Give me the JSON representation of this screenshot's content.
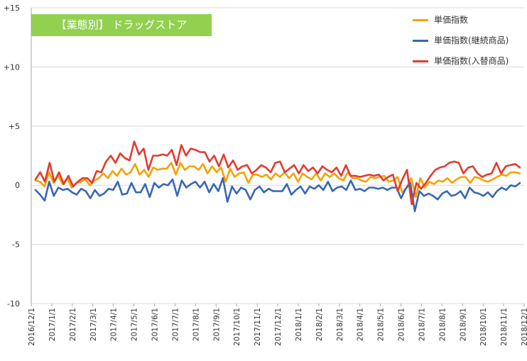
{
  "title": "【業態別】 ドラッグストア",
  "colors": {
    "background": "#ffffff",
    "title_box": "#92d050",
    "title_text": "#ffffff",
    "grid": "#d9d9d9",
    "axis": "#a6a6a6"
  },
  "chart_data": {
    "type": "line",
    "ylim": [
      -10,
      15
    ],
    "yticks": [
      -10,
      -5,
      0,
      5,
      10,
      15
    ],
    "ytick_labels": [
      "-10",
      "-5",
      "0",
      "+5",
      "+10",
      "+15"
    ],
    "xlim": [
      "2016-12-01",
      "2018-12-01"
    ],
    "xtick_labels": [
      "2016/12/1",
      "2017/1/1",
      "2017/2/1",
      "2017/3/1",
      "2017/4/1",
      "2017/5/1",
      "2017/6/1",
      "2017/7/1",
      "2017/8/1",
      "2017/9/1",
      "2017/10/1",
      "2017/11/1",
      "2017/12/1",
      "2018/1/1",
      "2018/2/1",
      "2018/3/1",
      "2018/4/1",
      "2018/5/1",
      "2018/6/1",
      "2018/7/1",
      "2018/8/1",
      "2018/9/1",
      "2018/10/1",
      "2018/11/1",
      "2018/12/1"
    ],
    "grid": "horizontal",
    "legend_position": "top-right",
    "series": [
      {
        "name": "単価指数",
        "color": "#f5a200",
        "values": [
          0.4,
          0.3,
          -0.1,
          1.1,
          0.2,
          0.8,
          0.1,
          0.6,
          -0.2,
          0.2,
          0.3,
          0.5,
          0.0,
          0.4,
          0.6,
          1.0,
          0.6,
          1.2,
          0.8,
          1.4,
          0.9,
          1.1,
          1.8,
          0.9,
          1.3,
          0.7,
          1.5,
          1.3,
          1.4,
          1.4,
          1.9,
          0.9,
          1.9,
          1.3,
          1.6,
          1.6,
          1.3,
          1.8,
          1.0,
          1.6,
          1.1,
          1.5,
          0.3,
          1.4,
          0.7,
          1.0,
          1.1,
          0.2,
          0.9,
          0.9,
          0.7,
          0.9,
          0.5,
          1.0,
          0.7,
          1.1,
          0.6,
          1.0,
          0.3,
          1.0,
          0.7,
          0.5,
          1.0,
          0.4,
          1.0,
          0.7,
          1.0,
          0.6,
          0.4,
          1.1,
          0.6,
          0.6,
          0.4,
          0.3,
          0.7,
          0.6,
          0.7,
          0.8,
          0.3,
          0.4,
          0.7,
          -0.6,
          -0.2,
          0.6,
          -1.0,
          0.6,
          -0.2,
          0.3,
          0.1,
          0.4,
          0.3,
          0.6,
          0.2,
          0.5,
          0.7,
          0.7,
          0.2,
          0.7,
          0.6,
          0.4,
          0.3,
          0.5,
          0.7,
          0.9,
          0.8,
          1.1,
          1.1,
          1.0
        ]
      },
      {
        "name": "単価指数(継続商品)",
        "color": "#3867b5",
        "values": [
          -0.4,
          -0.8,
          -1.3,
          0.3,
          -0.9,
          -0.2,
          -0.4,
          -0.3,
          -0.6,
          -0.8,
          -0.3,
          -0.5,
          -1.1,
          -0.4,
          -0.9,
          -0.7,
          -0.3,
          -0.4,
          0.3,
          -0.8,
          -0.7,
          0.2,
          -0.6,
          -0.6,
          0.1,
          -1.0,
          0.2,
          -0.2,
          0.1,
          0.0,
          0.5,
          -0.9,
          0.4,
          -0.2,
          0.1,
          0.3,
          -0.2,
          0.3,
          -0.6,
          0.1,
          -0.5,
          0.6,
          -1.4,
          -0.1,
          -0.7,
          -0.2,
          -0.4,
          -1.2,
          -0.4,
          -0.1,
          -0.6,
          -0.3,
          -0.5,
          -0.5,
          -0.5,
          0.1,
          -0.8,
          -0.4,
          -0.1,
          -0.7,
          -0.1,
          -0.3,
          0.0,
          -0.4,
          0.3,
          -0.5,
          -0.2,
          -0.1,
          -0.4,
          0.4,
          -0.4,
          -0.3,
          -0.5,
          -0.2,
          -0.2,
          -0.3,
          -0.2,
          -0.4,
          -0.2,
          -0.2,
          -1.1,
          -0.3,
          0.2,
          -2.2,
          -0.5,
          -0.9,
          -0.7,
          -0.9,
          -1.2,
          -0.7,
          -0.5,
          -0.9,
          -0.8,
          -0.5,
          -1.1,
          -0.2,
          -0.6,
          -0.7,
          -0.9,
          -0.6,
          -1.0,
          -0.5,
          -0.2,
          -0.4,
          0.0,
          -0.1,
          0.2
        ]
      },
      {
        "name": "単価指数(入替商品)",
        "color": "#e03c31",
        "values": [
          0.5,
          1.1,
          0.3,
          1.9,
          0.3,
          1.1,
          0.1,
          0.8,
          -0.1,
          0.3,
          0.6,
          0.6,
          0.2,
          1.2,
          1.1,
          2.0,
          2.5,
          1.9,
          2.7,
          2.3,
          2.1,
          3.7,
          2.6,
          3.1,
          1.3,
          2.5,
          2.5,
          2.6,
          2.5,
          3.0,
          1.7,
          3.4,
          2.5,
          3.1,
          3.0,
          2.8,
          2.8,
          2.0,
          2.5,
          1.6,
          2.6,
          1.5,
          2.1,
          1.3,
          1.6,
          1.7,
          1.0,
          1.3,
          1.7,
          1.5,
          1.1,
          1.9,
          2.0,
          1.1,
          1.4,
          1.7,
          1.0,
          1.7,
          1.2,
          1.5,
          1.0,
          1.6,
          1.3,
          1.1,
          1.5,
          0.8,
          1.7,
          0.8,
          0.8,
          0.7,
          0.8,
          0.9,
          0.8,
          0.9,
          0.4,
          0.7,
          0.9,
          -0.5,
          0.5,
          1.3,
          -1.6,
          0.2,
          -0.3,
          0.2,
          0.8,
          1.3,
          1.5,
          1.6,
          1.9,
          2.0,
          1.9,
          1.0,
          1.5,
          1.6,
          1.0,
          0.7,
          0.9,
          1.0,
          1.9,
          1.0,
          1.6,
          1.7,
          1.8,
          1.5
        ]
      }
    ]
  }
}
